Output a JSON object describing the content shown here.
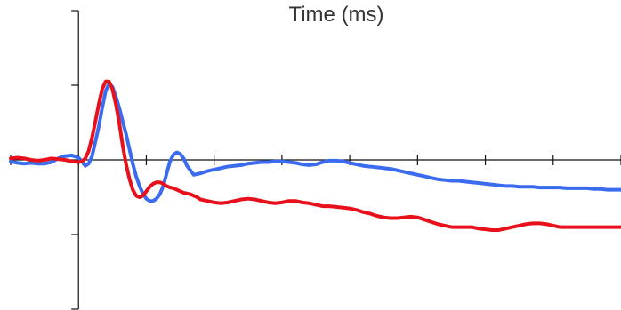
{
  "chart_data": {
    "type": "line",
    "title": "Time (ms)",
    "xlabel": "",
    "ylabel": "",
    "xlim": [
      -100,
      800
    ],
    "ylim": [
      -2,
      2
    ],
    "x_tick_values": [
      -100,
      0,
      100,
      200,
      300,
      400,
      500,
      600,
      700,
      800
    ],
    "y_tick_values": [
      -2,
      -1,
      0,
      1,
      2
    ],
    "grid": false,
    "legend": "none",
    "series": [
      {
        "color": "#3b6cf0",
        "x": [
          -100,
          -90,
          -80,
          -70,
          -60,
          -50,
          -40,
          -30,
          -20,
          -10,
          0,
          5,
          10,
          15,
          20,
          25,
          30,
          35,
          40,
          45,
          50,
          55,
          60,
          65,
          70,
          75,
          80,
          85,
          90,
          95,
          100,
          105,
          110,
          115,
          120,
          125,
          130,
          135,
          140,
          145,
          150,
          155,
          160,
          170,
          180,
          190,
          200,
          210,
          220,
          230,
          240,
          250,
          260,
          270,
          280,
          290,
          300,
          310,
          320,
          330,
          340,
          350,
          360,
          370,
          380,
          390,
          400,
          410,
          420,
          430,
          440,
          450,
          460,
          470,
          480,
          490,
          500,
          510,
          520,
          530,
          540,
          550,
          560,
          570,
          580,
          590,
          600,
          610,
          620,
          630,
          640,
          650,
          660,
          670,
          680,
          690,
          700,
          710,
          720,
          730,
          740,
          750,
          760,
          770,
          780,
          790,
          800
        ],
        "y": [
          -0.02,
          -0.04,
          -0.05,
          -0.04,
          -0.05,
          -0.05,
          -0.03,
          0.02,
          0.05,
          0.06,
          0.03,
          -0.02,
          -0.08,
          -0.05,
          0.05,
          0.25,
          0.45,
          0.7,
          0.92,
          1.02,
          0.98,
          0.85,
          0.7,
          0.52,
          0.35,
          0.15,
          -0.05,
          -0.22,
          -0.35,
          -0.45,
          -0.52,
          -0.55,
          -0.55,
          -0.52,
          -0.46,
          -0.35,
          -0.18,
          -0.02,
          0.07,
          0.1,
          0.08,
          0.02,
          -0.08,
          -0.2,
          -0.18,
          -0.15,
          -0.13,
          -0.11,
          -0.09,
          -0.08,
          -0.07,
          -0.05,
          -0.04,
          -0.03,
          -0.03,
          -0.02,
          -0.02,
          -0.03,
          -0.04,
          -0.06,
          -0.07,
          -0.06,
          -0.03,
          -0.01,
          -0.01,
          -0.02,
          -0.04,
          -0.06,
          -0.08,
          -0.09,
          -0.1,
          -0.11,
          -0.12,
          -0.14,
          -0.16,
          -0.18,
          -0.2,
          -0.22,
          -0.24,
          -0.26,
          -0.27,
          -0.28,
          -0.28,
          -0.29,
          -0.3,
          -0.31,
          -0.32,
          -0.33,
          -0.34,
          -0.35,
          -0.35,
          -0.36,
          -0.36,
          -0.36,
          -0.37,
          -0.37,
          -0.37,
          -0.37,
          -0.38,
          -0.38,
          -0.38,
          -0.38,
          -0.39,
          -0.39,
          -0.4,
          -0.4,
          -0.4
        ]
      },
      {
        "color": "#e8101a",
        "x": [
          -100,
          -90,
          -80,
          -70,
          -60,
          -50,
          -40,
          -30,
          -20,
          -10,
          0,
          5,
          10,
          15,
          20,
          25,
          30,
          35,
          40,
          45,
          50,
          55,
          60,
          65,
          70,
          75,
          80,
          85,
          90,
          95,
          100,
          105,
          110,
          115,
          120,
          125,
          130,
          135,
          140,
          145,
          150,
          155,
          160,
          165,
          170,
          175,
          180,
          190,
          200,
          210,
          220,
          230,
          240,
          250,
          260,
          270,
          280,
          290,
          300,
          310,
          320,
          330,
          340,
          350,
          360,
          370,
          380,
          390,
          400,
          410,
          420,
          430,
          440,
          450,
          460,
          470,
          480,
          490,
          500,
          510,
          520,
          530,
          540,
          550,
          560,
          570,
          580,
          590,
          600,
          610,
          620,
          630,
          640,
          650,
          660,
          670,
          680,
          690,
          700,
          710,
          720,
          730,
          740,
          750,
          760,
          770,
          780,
          790,
          800
        ],
        "y": [
          0.02,
          0.03,
          0.02,
          0.0,
          -0.01,
          0.0,
          0.02,
          0.01,
          0.0,
          -0.02,
          -0.03,
          -0.02,
          0.02,
          0.12,
          0.3,
          0.52,
          0.75,
          0.95,
          1.05,
          1.05,
          0.95,
          0.75,
          0.5,
          0.2,
          -0.05,
          -0.25,
          -0.4,
          -0.48,
          -0.5,
          -0.48,
          -0.42,
          -0.36,
          -0.32,
          -0.3,
          -0.3,
          -0.32,
          -0.35,
          -0.37,
          -0.38,
          -0.4,
          -0.42,
          -0.44,
          -0.45,
          -0.46,
          -0.48,
          -0.5,
          -0.53,
          -0.55,
          -0.57,
          -0.58,
          -0.57,
          -0.55,
          -0.53,
          -0.52,
          -0.53,
          -0.55,
          -0.57,
          -0.58,
          -0.57,
          -0.55,
          -0.55,
          -0.57,
          -0.58,
          -0.6,
          -0.62,
          -0.62,
          -0.63,
          -0.64,
          -0.65,
          -0.67,
          -0.7,
          -0.72,
          -0.75,
          -0.77,
          -0.78,
          -0.78,
          -0.77,
          -0.76,
          -0.77,
          -0.8,
          -0.83,
          -0.86,
          -0.88,
          -0.9,
          -0.9,
          -0.9,
          -0.9,
          -0.92,
          -0.93,
          -0.94,
          -0.94,
          -0.92,
          -0.9,
          -0.88,
          -0.86,
          -0.85,
          -0.85,
          -0.86,
          -0.88,
          -0.9,
          -0.9,
          -0.9,
          -0.9,
          -0.9,
          -0.9,
          -0.9,
          -0.9,
          -0.9,
          -0.9
        ]
      }
    ]
  }
}
